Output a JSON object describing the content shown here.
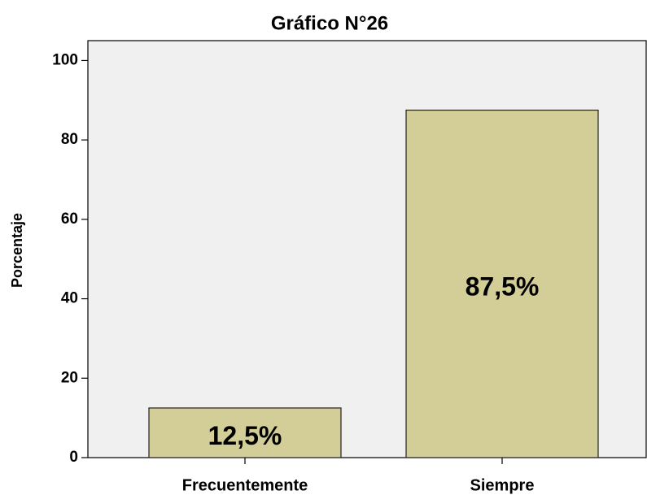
{
  "chart_data": {
    "type": "bar",
    "title": "Gráfico N°26",
    "y_label": "Porcentaje",
    "categories": [
      "Frecuentemente",
      "Siempre"
    ],
    "values": [
      12.5,
      87.5
    ],
    "value_labels": [
      "12,5%",
      "87,5%"
    ],
    "color": "#d3ce97",
    "ylim": [
      0,
      105
    ],
    "yticks": [
      0,
      20,
      40,
      60,
      80,
      100
    ],
    "grid": false
  }
}
